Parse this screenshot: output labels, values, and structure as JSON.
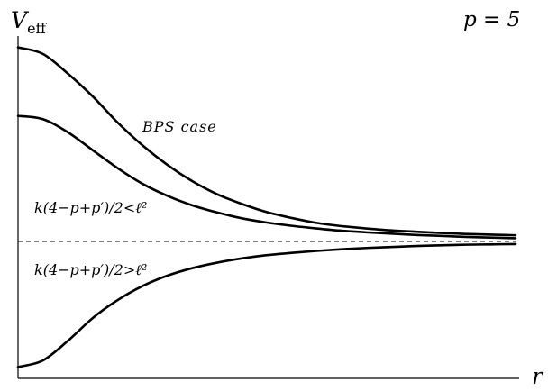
{
  "chart_data": {
    "type": "line",
    "y_axis_label": "V",
    "y_axis_label_sub": "eff",
    "x_axis_label": "r",
    "corner_label": "p = 5",
    "asymptote_style": "dashed",
    "xlim": [
      0,
      1
    ],
    "ylim": [
      0,
      1
    ],
    "annotations": [
      {
        "text": "BPS case",
        "curve": "bps"
      },
      {
        "text": "k(4−p+p′)/2<ℓ²",
        "curve": "middle"
      },
      {
        "text": "k(4−p+p′)/2>ℓ²",
        "curve": "lower"
      }
    ],
    "series": [
      {
        "id": "upper",
        "x": [
          0,
          0.05,
          0.1,
          0.15,
          0.2,
          0.25,
          0.3,
          0.35,
          0.4,
          0.45,
          0.5,
          0.55,
          0.6,
          0.65,
          0.7,
          0.75,
          0.8,
          0.85,
          0.9,
          0.95,
          1.0
        ],
        "y": [
          0.99,
          0.97,
          0.91,
          0.84,
          0.76,
          0.69,
          0.63,
          0.58,
          0.54,
          0.51,
          0.485,
          0.467,
          0.452,
          0.442,
          0.435,
          0.429,
          0.425,
          0.421,
          0.418,
          0.416,
          0.414
        ]
      },
      {
        "id": "middle",
        "x": [
          0,
          0.05,
          0.1,
          0.15,
          0.2,
          0.25,
          0.3,
          0.35,
          0.4,
          0.45,
          0.5,
          0.55,
          0.6,
          0.65,
          0.7,
          0.75,
          0.8,
          0.85,
          0.9,
          0.95,
          1.0
        ],
        "y": [
          0.78,
          0.77,
          0.73,
          0.675,
          0.62,
          0.572,
          0.535,
          0.506,
          0.484,
          0.466,
          0.453,
          0.443,
          0.435,
          0.428,
          0.423,
          0.419,
          0.415,
          0.412,
          0.409,
          0.407,
          0.405
        ]
      },
      {
        "id": "lower",
        "x": [
          0,
          0.05,
          0.1,
          0.15,
          0.2,
          0.25,
          0.3,
          0.35,
          0.4,
          0.45,
          0.5,
          0.55,
          0.6,
          0.65,
          0.7,
          0.75,
          0.8,
          0.85,
          0.9,
          0.95,
          1.0
        ],
        "y": [
          0.01,
          0.03,
          0.09,
          0.16,
          0.215,
          0.258,
          0.29,
          0.313,
          0.33,
          0.343,
          0.353,
          0.36,
          0.366,
          0.371,
          0.375,
          0.378,
          0.381,
          0.383,
          0.385,
          0.386,
          0.387
        ]
      }
    ],
    "asymptote_y": 0.395
  }
}
